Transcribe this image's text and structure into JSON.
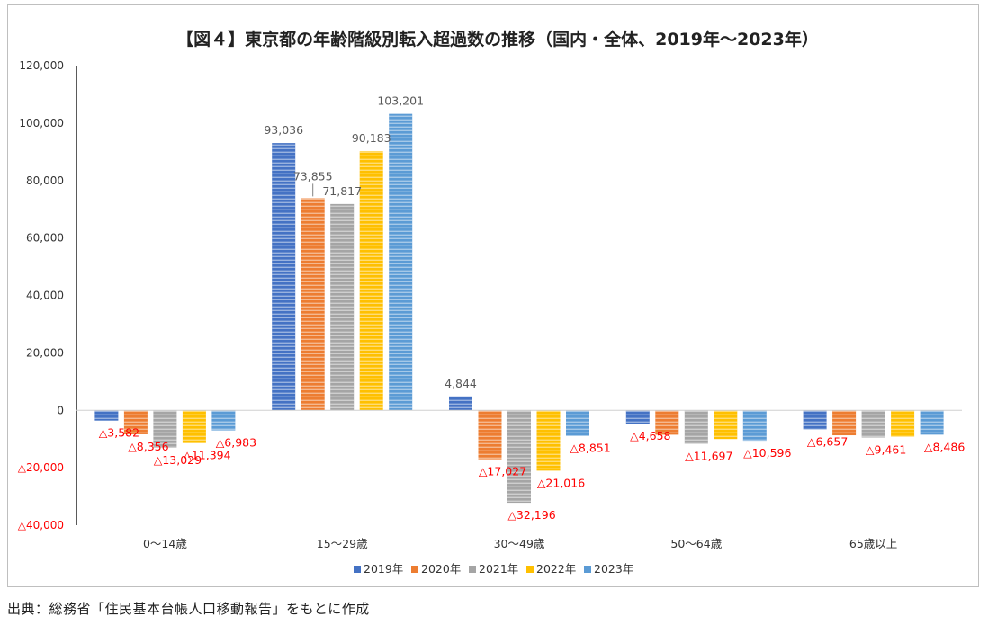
{
  "chart_data": {
    "type": "bar",
    "title": "【図４】東京都の年齢階級別転入超過数の推移（国内・全体、2019年～2023年）",
    "categories": [
      "0～14歳",
      "15～29歳",
      "30～49歳",
      "50～64歳",
      "65歳以上"
    ],
    "series": [
      {
        "name": "2019年",
        "color": "#4472c4",
        "values": [
          -3582,
          93036,
          4844,
          -4658,
          -6657
        ],
        "labels": [
          "△3,582",
          "93,036",
          "4,844",
          "△4,658",
          "△6,657"
        ]
      },
      {
        "name": "2020年",
        "color": "#ed7d31",
        "values": [
          -8356,
          73855,
          -17027,
          -8500,
          -8700
        ],
        "labels": [
          "△8,356",
          "73,855",
          "△17,027",
          "",
          ""
        ]
      },
      {
        "name": "2021年",
        "color": "#a5a5a5",
        "values": [
          -13029,
          71817,
          -32196,
          -11697,
          -9461
        ],
        "labels": [
          "△13,029",
          "71,817",
          "△32,196",
          "△11,697",
          "△9,461"
        ]
      },
      {
        "name": "2022年",
        "color": "#ffc000",
        "values": [
          -11394,
          90183,
          -21016,
          -10000,
          -9200
        ],
        "labels": [
          "△11,394",
          "90,183",
          "△21,016",
          "",
          ""
        ]
      },
      {
        "name": "2023年",
        "color": "#5b9bd5",
        "values": [
          -6983,
          103201,
          -8851,
          -10596,
          -8486
        ],
        "labels": [
          "△6,983",
          "103,201",
          "△8,851",
          "△10,596",
          "△8,486"
        ]
      }
    ],
    "y_ticks": [
      120000,
      100000,
      80000,
      60000,
      40000,
      20000,
      0,
      -20000,
      -40000
    ],
    "y_tick_labels": [
      "120,000",
      "100,000",
      "80,000",
      "60,000",
      "40,000",
      "20,000",
      "0",
      "△20,000",
      "△40,000"
    ],
    "ylim": [
      -40000,
      120000
    ],
    "grid": false,
    "legend_position": "bottom",
    "negative_label_color": "#ff0000",
    "positive_label_color": "#595959"
  },
  "source": "出典：総務省「住民基本台帳人口移動報告」をもとに作成"
}
